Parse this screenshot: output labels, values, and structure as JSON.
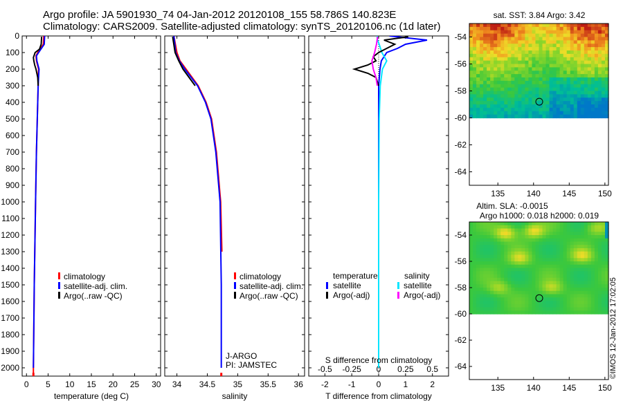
{
  "header": {
    "line1": "Argo profile: JA 5901930_74 04-Jan-2012 20120108_155 58.786S 140.823E",
    "line2": "Climatology: CARS2009. Satellite-adjusted climatology: synTS_20120106.nc (1d later)"
  },
  "colors": {
    "climatology": "#ff0000",
    "satellite": "#0000ff",
    "argo": "#000000",
    "sat_salinity": "#00e5ff",
    "argo_salinity": "#ff00ff"
  },
  "legend_items": [
    "climatology",
    "satellite-adj. clim.",
    "Argo(..raw -QC)"
  ],
  "diff_legend": {
    "temp_head": "temperature",
    "sal_head": "salinity",
    "sat": "satellite",
    "argo": "Argo(-adj)"
  },
  "annotation": {
    "program": "J-ARGO",
    "pi": "PI: JAMSTEC"
  },
  "map_sst": {
    "title": "sat. SST: 3.84  Argo: 3.42"
  },
  "map_sla": {
    "title1": "Altim. SLA: -0.0015",
    "title2": "Argo h1000: 0.018 h2000: 0.019"
  },
  "credit": "©IMOS 12-Jan-2012 17:02:05",
  "chart_data": [
    {
      "type": "line",
      "xlabel": "temperature (deg C)",
      "ylabel": "",
      "xlim": [
        -1,
        31
      ],
      "ylim": [
        2050,
        0
      ],
      "xticks": [
        0,
        5,
        10,
        15,
        20,
        25,
        30
      ],
      "yticks": [
        0,
        100,
        200,
        300,
        400,
        500,
        600,
        700,
        800,
        900,
        1000,
        1100,
        1200,
        1300,
        1400,
        1500,
        1600,
        1700,
        1800,
        1900,
        2000
      ],
      "series": [
        {
          "name": "climatology",
          "color": "#ff0000",
          "depth": [
            0,
            50,
            100,
            120,
            150,
            200,
            250,
            300,
            400,
            500,
            700,
            1000,
            1500,
            2000,
            2050
          ],
          "value": [
            4.0,
            3.9,
            2.6,
            2.2,
            2.3,
            2.8,
            2.7,
            2.7,
            2.6,
            2.5,
            2.3,
            2.1,
            1.8,
            1.6,
            1.6
          ]
        },
        {
          "name": "satellite-adj. clim.",
          "color": "#0000ff",
          "depth": [
            0,
            50,
            100,
            120,
            150,
            200,
            250,
            300,
            400,
            500,
            700,
            1000,
            1500,
            2000
          ],
          "value": [
            4.2,
            4.1,
            2.8,
            2.3,
            2.4,
            2.9,
            2.8,
            2.7,
            2.6,
            2.5,
            2.3,
            2.1,
            1.8,
            1.6
          ]
        },
        {
          "name": "Argo(..raw -QC)",
          "color": "#000000",
          "depth": [
            5,
            50,
            80,
            100,
            130,
            150,
            175,
            200,
            250,
            300
          ],
          "value": [
            3.5,
            3.4,
            3.0,
            2.0,
            1.6,
            1.7,
            1.9,
            2.2,
            2.6,
            2.7
          ]
        }
      ]
    },
    {
      "type": "line",
      "xlabel": "salinity",
      "ylabel": "",
      "xlim": [
        33.8,
        36.1
      ],
      "ylim": [
        2050,
        0
      ],
      "xticks": [
        34,
        34.5,
        35,
        35.5,
        36
      ],
      "series": [
        {
          "name": "climatology",
          "color": "#ff0000",
          "depth": [
            0,
            100,
            150,
            200,
            300,
            400,
            500,
            700,
            1000,
            1300
          ],
          "value": [
            33.95,
            34.0,
            34.05,
            34.15,
            34.35,
            34.48,
            34.57,
            34.65,
            34.72,
            34.74
          ]
        },
        {
          "name": "satellite-adj. clim.",
          "color": "#0000ff",
          "depth": [
            0,
            100,
            150,
            200,
            300,
            400,
            500,
            700,
            1000,
            1500,
            2000
          ],
          "value": [
            33.95,
            33.98,
            34.04,
            34.13,
            34.34,
            34.47,
            34.56,
            34.64,
            34.71,
            34.73,
            34.73
          ]
        },
        {
          "name": "Argo(..raw -QC)",
          "color": "#000000",
          "depth": [
            5,
            100,
            150,
            200,
            250,
            300
          ],
          "value": [
            33.93,
            33.97,
            34.03,
            34.1,
            34.2,
            34.3
          ]
        }
      ]
    },
    {
      "type": "line",
      "xlabel": "T difference from climatology",
      "xlabel2": "S difference from climatology",
      "ylabel": "",
      "xlim": [
        -2.6,
        2.6
      ],
      "ylim": [
        2050,
        0
      ],
      "xticks": [
        -2,
        -1,
        0,
        1,
        2
      ],
      "xticklabels": [
        "-2",
        "-1",
        "0",
        "1",
        "2"
      ],
      "x2ticks": [
        -0.5,
        -0.25,
        0,
        0.25,
        0.5
      ],
      "series": [
        {
          "name": "T satellite",
          "color": "#0000ff",
          "depth": [
            0,
            25,
            50,
            75,
            100,
            125,
            150,
            200,
            300,
            500,
            1000,
            2000
          ],
          "value": [
            0.4,
            1.8,
            1.0,
            0.7,
            0.3,
            0.2,
            0.1,
            0.05,
            0.0,
            0.0,
            0.0,
            0.0
          ]
        },
        {
          "name": "S satellite",
          "color": "#00e5ff",
          "depth": [
            0,
            25,
            50,
            100,
            150,
            200,
            300,
            500,
            1000,
            2000
          ],
          "value": [
            -0.06,
            -0.04,
            0.02,
            0.12,
            0.3,
            0.14,
            0.06,
            0.02,
            0.0,
            0.0
          ]
        },
        {
          "name": "T Argo(-adj)",
          "color": "#000000",
          "depth": [
            5,
            25,
            50,
            75,
            100,
            125,
            150,
            175,
            200,
            225,
            250,
            300
          ],
          "value": [
            1.1,
            0.2,
            0.6,
            0.3,
            0.0,
            -0.2,
            -0.1,
            -0.4,
            -0.9,
            -0.4,
            -0.1,
            0.0
          ]
        },
        {
          "name": "S Argo(-adj)",
          "color": "#ff00ff",
          "depth": [
            5,
            50,
            100,
            150,
            200,
            250,
            300
          ],
          "value": [
            -0.04,
            -0.08,
            -0.15,
            -0.25,
            -0.2,
            -0.1,
            -0.05
          ]
        }
      ]
    },
    {
      "type": "heatmap",
      "title": "sat. SST: 3.84  Argo: 3.42",
      "xlim": [
        131,
        150.5
      ],
      "ylim": [
        -65,
        -53
      ],
      "xticks": [
        135,
        140,
        145,
        150
      ],
      "yticks": [
        -54,
        -56,
        -58,
        -60,
        -62,
        -64
      ],
      "data_ylim": [
        -60,
        -53
      ],
      "marker": {
        "lon": 140.8,
        "lat": -58.8
      }
    },
    {
      "type": "heatmap",
      "title": "Altim. SLA: -0.0015",
      "xlim": [
        131,
        150.5
      ],
      "ylim": [
        -65,
        -53
      ],
      "xticks": [
        135,
        140,
        145,
        150
      ],
      "yticks": [
        -54,
        -56,
        -58,
        -60,
        -62,
        -64
      ],
      "data_ylim": [
        -60,
        -53
      ],
      "marker": {
        "lon": 140.8,
        "lat": -58.8
      }
    }
  ]
}
